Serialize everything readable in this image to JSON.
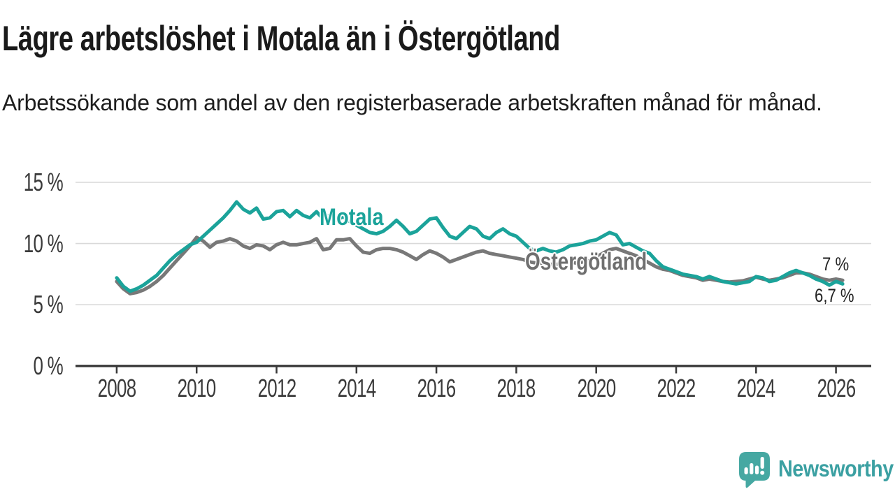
{
  "header": {
    "title": "Lägre arbetslöshet i Motala än i Östergötland",
    "subtitle": "Arbetssökande som andel av den registerbaserade arbetskraften månad för månad."
  },
  "footer": {
    "brand": "Newsworthy",
    "logo_icon": "speech-bubble-bar-chart-icon",
    "brand_text_color": "#3ba0a2",
    "icon_color": "#46a8a2"
  },
  "colors": {
    "motala_line": "#1ba39a",
    "ostergotland_line": "#787878",
    "axis": "#3a3a3a",
    "grid": "#d9d9d9",
    "annotation_text": "#222222",
    "title_text": "#1a1a1a"
  },
  "chart_data": {
    "type": "line",
    "title": "Lägre arbetslöshet i Motala än i Östergötland",
    "subtitle": "Arbetssökande som andel av den registerbaserade arbetskraften månad för månad.",
    "x_unit": "decimal year, monthly registry data sampled every 2 months",
    "y_unit": "percent of registered labour force",
    "x_start": 2008,
    "x_step_years": 0.166667,
    "x_end": 2026.17,
    "xlim": [
      2007.5,
      2026.9
    ],
    "ylim": [
      0,
      15.5
    ],
    "grid": "horizontal",
    "legend_position": "inline-labels-on-lines",
    "y_ticks": [
      {
        "value": 15,
        "label": "15 %"
      },
      {
        "value": 10,
        "label": "10 %"
      },
      {
        "value": 5,
        "label": "5 %"
      },
      {
        "value": 0,
        "label": "0 %"
      }
    ],
    "x_ticks": [
      {
        "value": 2008,
        "label": "2008"
      },
      {
        "value": 2010,
        "label": "2010"
      },
      {
        "value": 2012,
        "label": "2012"
      },
      {
        "value": 2014,
        "label": "2014"
      },
      {
        "value": 2016,
        "label": "2016"
      },
      {
        "value": 2018,
        "label": "2018"
      },
      {
        "value": 2020,
        "label": "2020"
      },
      {
        "value": 2022,
        "label": "2022"
      },
      {
        "value": 2024,
        "label": "2024"
      },
      {
        "value": 2026,
        "label": "2026"
      }
    ],
    "series": [
      {
        "name": "Motala",
        "color": "#1ba39a",
        "values": [
          7.2,
          6.5,
          6.1,
          6.3,
          6.6,
          7.0,
          7.4,
          8.0,
          8.6,
          9.1,
          9.5,
          9.9,
          10.1,
          10.6,
          11.1,
          11.6,
          12.1,
          12.7,
          13.4,
          12.8,
          12.5,
          12.9,
          12.0,
          12.1,
          12.6,
          12.7,
          12.2,
          12.7,
          12.3,
          12.1,
          12.6,
          12.0,
          12.3,
          11.9,
          12.2,
          11.8,
          11.5,
          11.2,
          10.9,
          10.8,
          11.0,
          11.4,
          11.9,
          11.4,
          10.8,
          11.0,
          11.5,
          12.0,
          12.1,
          11.3,
          10.6,
          10.4,
          10.9,
          11.4,
          11.2,
          10.6,
          10.4,
          10.9,
          11.2,
          10.8,
          10.6,
          10.1,
          9.6,
          9.4,
          9.6,
          9.4,
          9.3,
          9.5,
          9.8,
          9.9,
          10.0,
          10.2,
          10.3,
          10.6,
          10.9,
          10.7,
          9.9,
          10.0,
          9.7,
          9.4,
          9.2,
          8.6,
          8.1,
          7.9,
          7.7,
          7.5,
          7.4,
          7.3,
          7.1,
          7.3,
          7.1,
          6.9,
          6.8,
          6.7,
          6.8,
          6.9,
          7.3,
          7.2,
          6.9,
          7.0,
          7.3,
          7.6,
          7.8,
          7.6,
          7.4,
          7.1,
          6.9,
          6.6,
          6.9,
          6.7
        ]
      },
      {
        "name": "Östergötland",
        "color": "#787878",
        "values": [
          6.9,
          6.3,
          5.9,
          6.0,
          6.2,
          6.5,
          6.9,
          7.4,
          8.0,
          8.6,
          9.2,
          9.8,
          10.5,
          10.2,
          9.7,
          10.1,
          10.2,
          10.4,
          10.2,
          9.8,
          9.6,
          9.9,
          9.8,
          9.5,
          9.9,
          10.1,
          9.9,
          9.9,
          10.0,
          10.1,
          10.4,
          9.5,
          9.6,
          10.3,
          10.3,
          10.4,
          9.8,
          9.3,
          9.2,
          9.5,
          9.6,
          9.6,
          9.5,
          9.3,
          9.0,
          8.7,
          9.1,
          9.4,
          9.2,
          8.9,
          8.5,
          8.7,
          8.9,
          9.1,
          9.3,
          9.4,
          9.2,
          9.1,
          9.0,
          8.9,
          8.8,
          8.7,
          8.5,
          8.4,
          8.4,
          8.3,
          8.3,
          8.4,
          8.5,
          8.4,
          8.5,
          8.6,
          8.9,
          9.2,
          9.5,
          9.6,
          9.4,
          9.2,
          9.0,
          8.7,
          8.4,
          8.1,
          7.9,
          7.8,
          7.6,
          7.4,
          7.3,
          7.2,
          7.0,
          7.1,
          7.0,
          6.9,
          6.85,
          6.9,
          6.95,
          7.1,
          7.25,
          7.1,
          7.0,
          7.1,
          7.2,
          7.4,
          7.6,
          7.6,
          7.5,
          7.3,
          7.1,
          7.0,
          7.1,
          7.0
        ]
      }
    ],
    "end_labels": [
      {
        "series": "Östergötland",
        "value": 7.0,
        "label": "7 %"
      },
      {
        "series": "Motala",
        "value": 6.7,
        "label": "6,7 %"
      }
    ]
  }
}
